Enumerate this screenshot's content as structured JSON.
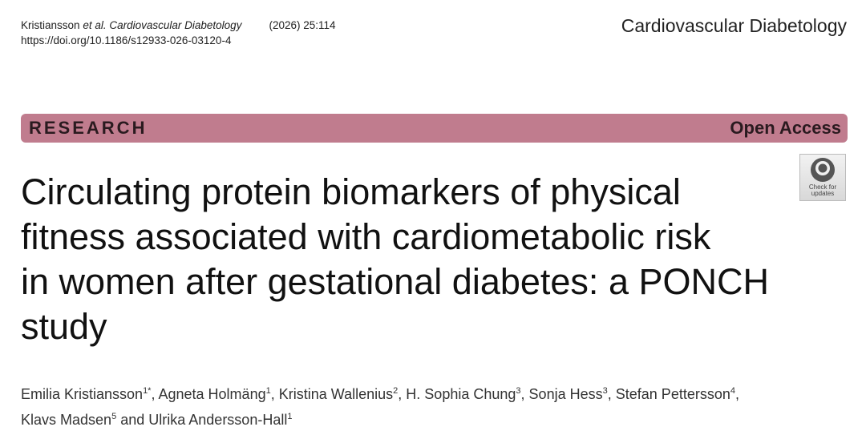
{
  "header": {
    "citation_author": "Kristiansson",
    "citation_etal": "et al.",
    "citation_journal": "Cardiovascular Diabetology",
    "citation_issue": "(2026) 25:114",
    "doi": "https://doi.org/10.1186/s12933-026-03120-4",
    "journal_name": "Cardiovascular Diabetology"
  },
  "banner": {
    "article_type": "RESEARCH",
    "access": "Open Access"
  },
  "badge": {
    "lines": [
      "Check for",
      "updates"
    ]
  },
  "title": {
    "lines": [
      "Circulating protein biomarkers of physical",
      "fitness associated with cardiometabolic risk",
      "in women after gestational diabetes: a PONCH",
      "study"
    ]
  },
  "authors": {
    "lines": [
      [
        {
          "name": "Emilia Kristiansson",
          "sup": "1*",
          "sep": ","
        },
        {
          "name": "Agneta Holmäng",
          "sup": "1",
          "sep": ","
        },
        {
          "name": "Kristina Wallenius",
          "sup": "2",
          "sep": ","
        },
        {
          "name": "H. Sophia Chung",
          "sup": "3",
          "sep": ","
        },
        {
          "name": "Sonja Hess",
          "sup": "3",
          "sep": ","
        },
        {
          "name": "Stefan Pettersson",
          "sup": "4",
          "sep": ","
        }
      ],
      [
        {
          "name": "Klavs Madsen",
          "sup": "5",
          "sep": "and"
        },
        {
          "name": "Ulrika Andersson-Hall",
          "sup": "1"
        }
      ]
    ]
  }
}
